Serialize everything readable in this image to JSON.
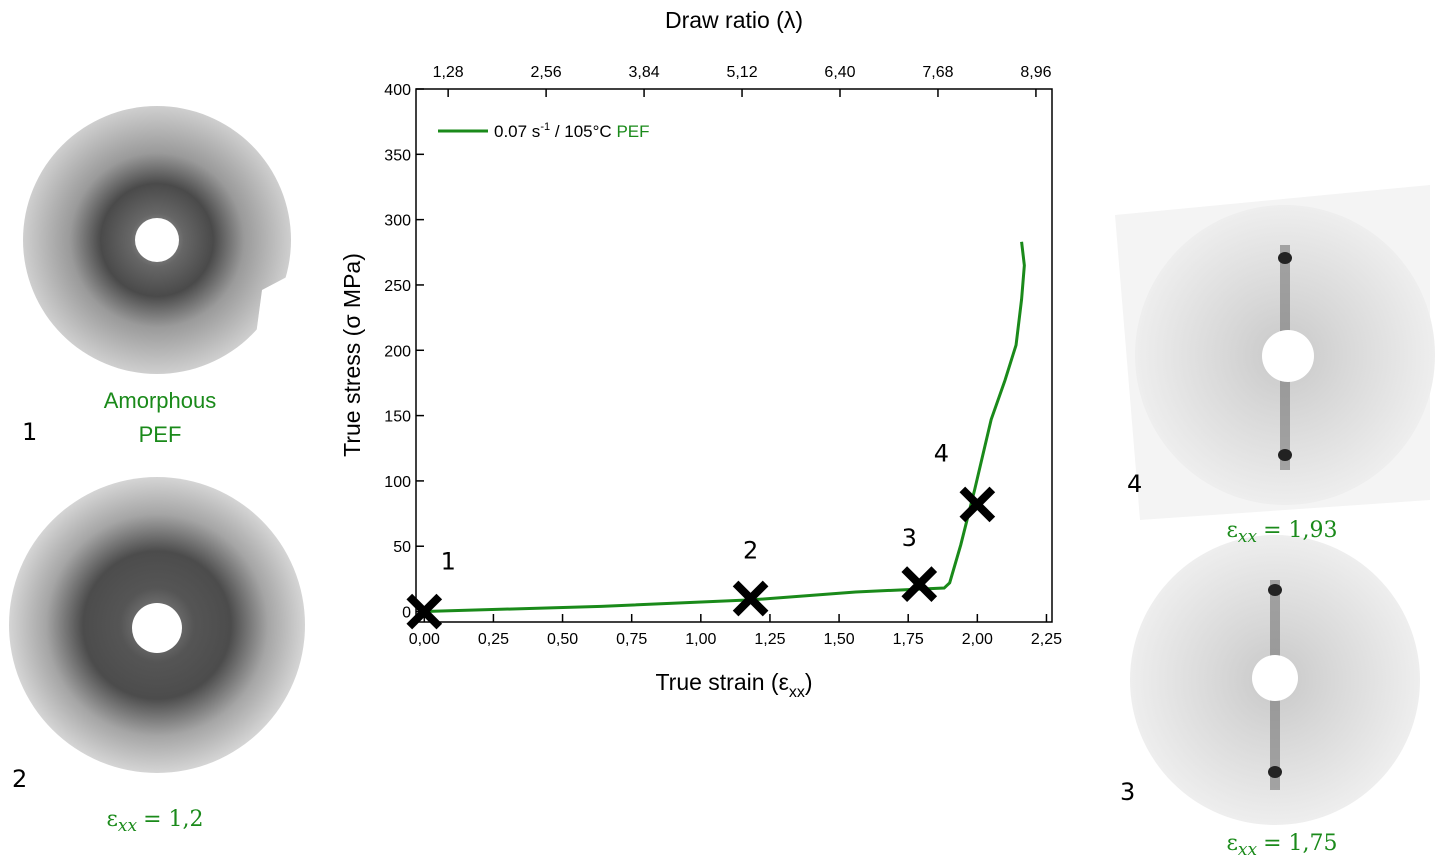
{
  "chart_data": {
    "type": "line",
    "x2label": "Draw ratio (λ)",
    "xlabel": {
      "text": "True strain (ε",
      "subscript": "xx",
      "suffix": ")"
    },
    "ylabel": "True stress (σ MPa)",
    "xlim": [
      -0.03,
      2.27
    ],
    "xticks": [
      {
        "value": 0,
        "label": "0,00"
      },
      {
        "value": 0.25,
        "label": "0,25"
      },
      {
        "value": 0.5,
        "label": "0,50"
      },
      {
        "value": 0.75,
        "label": "0,75"
      },
      {
        "value": 1,
        "label": "1,00"
      },
      {
        "value": 1.25,
        "label": "1,25"
      },
      {
        "value": 1.5,
        "label": "1,50"
      },
      {
        "value": 1.75,
        "label": "1,75"
      },
      {
        "value": 2,
        "label": "2,00"
      },
      {
        "value": 2.25,
        "label": "2,25"
      }
    ],
    "x2lim": [
      0.86,
      9.17
    ],
    "x2ticks": [
      {
        "value": 1.28,
        "label": "1,28"
      },
      {
        "value": 2.56,
        "label": "2,56"
      },
      {
        "value": 3.84,
        "label": "3,84"
      },
      {
        "value": 5.12,
        "label": "5,12"
      },
      {
        "value": 6.4,
        "label": "6,40"
      },
      {
        "value": 7.68,
        "label": "7,68"
      },
      {
        "value": 8.96,
        "label": "8,96"
      }
    ],
    "ylim": [
      -8,
      400
    ],
    "yticks": [
      0,
      50,
      100,
      150,
      200,
      250,
      300,
      350,
      400
    ],
    "series": [
      {
        "name": {
          "rate": "0.07 s",
          "exponent": "-1",
          "condition": " / 105°C ",
          "material": "PEF"
        },
        "color": "#1a8a1a",
        "x": [
          0,
          0.64,
          1.19,
          1.56,
          1.88,
          1.9,
          1.94,
          1.99,
          2.05,
          2.1,
          2.14,
          2.16,
          2.17,
          2.16
        ],
        "values": [
          0,
          4,
          9,
          15,
          18,
          22,
          51,
          93,
          147,
          177,
          204,
          239,
          265,
          283
        ]
      }
    ],
    "markers": [
      {
        "label": "1",
        "x": 0,
        "y": 0
      },
      {
        "label": "2",
        "x": 1.18,
        "y": 10
      },
      {
        "label": "3",
        "x": 1.79,
        "y": 21
      },
      {
        "label": "4",
        "x": 2.0,
        "y": 82
      }
    ]
  },
  "images": [
    {
      "number": "1",
      "caption": [
        "Amorphous",
        "PEF"
      ]
    },
    {
      "number": "2",
      "caption": {
        "symbol": "ε",
        "subscript": "xx",
        "value_text": "= 1,2"
      }
    },
    {
      "number": "4",
      "caption": {
        "symbol": "ε",
        "subscript": "xx",
        "value_text": "= 1,93"
      }
    },
    {
      "number": "3",
      "caption": {
        "symbol": "ε",
        "subscript": "xx",
        "value_text": "= 1,75"
      }
    }
  ]
}
